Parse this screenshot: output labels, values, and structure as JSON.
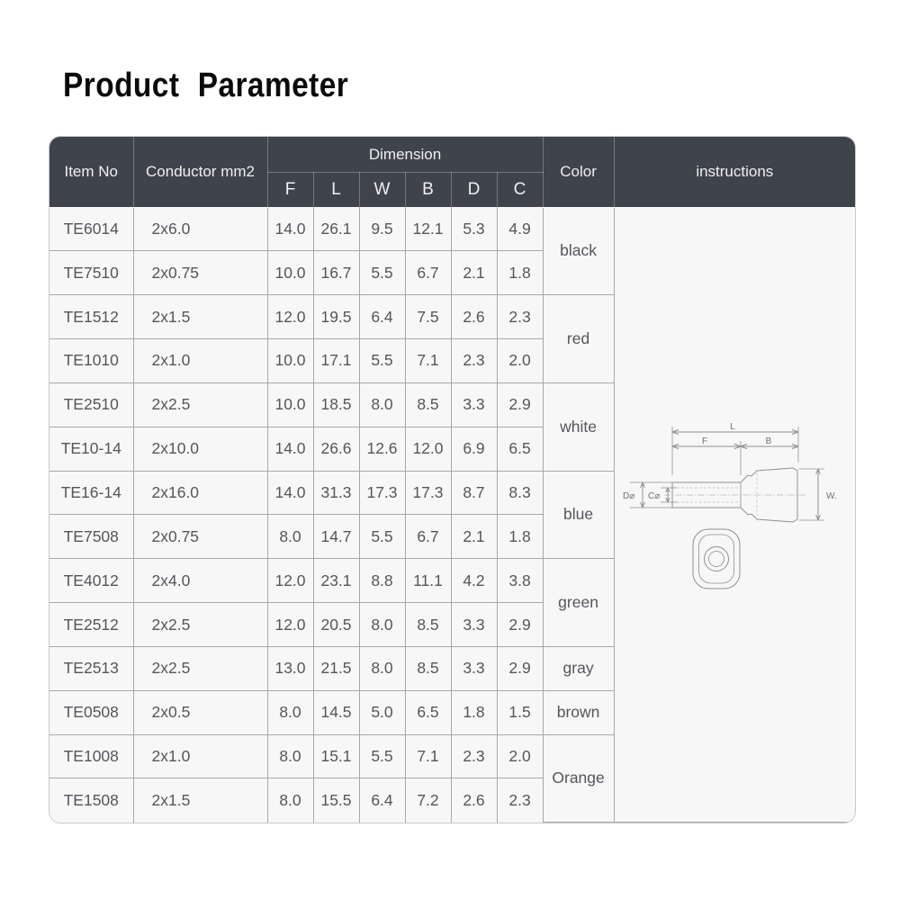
{
  "page": {
    "title": "Product  Parameter"
  },
  "colors": {
    "header_bg": "#3f444c",
    "header_text": "#eef0f2",
    "body_bg": "#f7f7f7",
    "body_text": "#53565b",
    "border": "#a5a8ab",
    "border_light": "#c9c9c9",
    "diagram": "#8b9095",
    "diagram_text": "#6d7379",
    "title": "#0b0b0b"
  },
  "table": {
    "headers": {
      "item_no": "Item No",
      "conductor": "Conductor mm2",
      "dimension": "Dimension",
      "color": "Color",
      "instructions": "instructions"
    },
    "dim_cols": [
      "F",
      "L",
      "W",
      "B",
      "D",
      "C"
    ],
    "rows": [
      {
        "item": "TE6014",
        "conductor": "2x6.0",
        "f": "14.0",
        "l": "26.1",
        "w": "9.5",
        "b": "12.1",
        "d": "5.3",
        "c": "4.9"
      },
      {
        "item": "TE7510",
        "conductor": "2x0.75",
        "f": "10.0",
        "l": "16.7",
        "w": "5.5",
        "b": "6.7",
        "d": "2.1",
        "c": "1.8"
      },
      {
        "item": "TE1512",
        "conductor": "2x1.5",
        "f": "12.0",
        "l": "19.5",
        "w": "6.4",
        "b": "7.5",
        "d": "2.6",
        "c": "2.3"
      },
      {
        "item": "TE1010",
        "conductor": "2x1.0",
        "f": "10.0",
        "l": "17.1",
        "w": "5.5",
        "b": "7.1",
        "d": "2.3",
        "c": "2.0"
      },
      {
        "item": "TE2510",
        "conductor": "2x2.5",
        "f": "10.0",
        "l": "18.5",
        "w": "8.0",
        "b": "8.5",
        "d": "3.3",
        "c": "2.9"
      },
      {
        "item": "TE10-14",
        "conductor": "2x10.0",
        "f": "14.0",
        "l": "26.6",
        "w": "12.6",
        "b": "12.0",
        "d": "6.9",
        "c": "6.5"
      },
      {
        "item": "TE16-14",
        "conductor": "2x16.0",
        "f": "14.0",
        "l": "31.3",
        "w": "17.3",
        "b": "17.3",
        "d": "8.7",
        "c": "8.3"
      },
      {
        "item": "TE7508",
        "conductor": "2x0.75",
        "f": "8.0",
        "l": "14.7",
        "w": "5.5",
        "b": "6.7",
        "d": "2.1",
        "c": "1.8"
      },
      {
        "item": "TE4012",
        "conductor": "2x4.0",
        "f": "12.0",
        "l": "23.1",
        "w": "8.8",
        "b": "11.1",
        "d": "4.2",
        "c": "3.8"
      },
      {
        "item": "TE2512",
        "conductor": "2x2.5",
        "f": "12.0",
        "l": "20.5",
        "w": "8.0",
        "b": "8.5",
        "d": "3.3",
        "c": "2.9"
      },
      {
        "item": "TE2513",
        "conductor": "2x2.5",
        "f": "13.0",
        "l": "21.5",
        "w": "8.0",
        "b": "8.5",
        "d": "3.3",
        "c": "2.9"
      },
      {
        "item": "TE0508",
        "conductor": "2x0.5",
        "f": "8.0",
        "l": "14.5",
        "w": "5.0",
        "b": "6.5",
        "d": "1.8",
        "c": "1.5"
      },
      {
        "item": "TE1008",
        "conductor": "2x1.0",
        "f": "8.0",
        "l": "15.1",
        "w": "5.5",
        "b": "7.1",
        "d": "2.3",
        "c": "2.0"
      },
      {
        "item": "TE1508",
        "conductor": "2x1.5",
        "f": "8.0",
        "l": "15.5",
        "w": "6.4",
        "b": "7.2",
        "d": "2.6",
        "c": "2.3"
      }
    ],
    "color_groups": [
      {
        "label": "black",
        "span": 2
      },
      {
        "label": "red",
        "span": 2
      },
      {
        "label": "white",
        "span": 2
      },
      {
        "label": "blue",
        "span": 2
      },
      {
        "label": "green",
        "span": 2
      },
      {
        "label": "gray",
        "span": 1
      },
      {
        "label": "brown",
        "span": 1
      },
      {
        "label": "Orange",
        "span": 2
      }
    ]
  },
  "diagram": {
    "l": "L",
    "f": "F",
    "b": "B",
    "w": "W.",
    "d": "D⌀",
    "c": "C⌀"
  }
}
